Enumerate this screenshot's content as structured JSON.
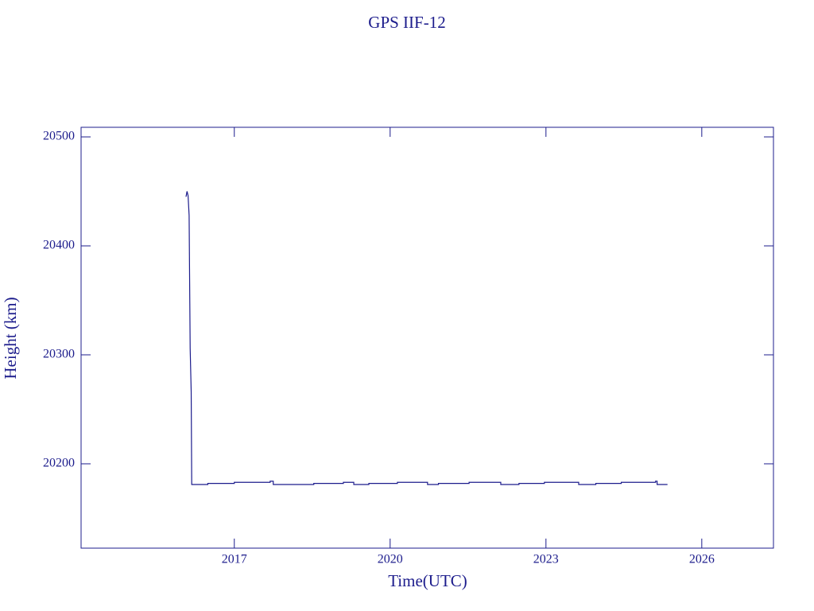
{
  "chart_data": {
    "type": "line",
    "title": "GPS IIF-12",
    "x_label": "Time(UTC)",
    "y_label": "Height (km)",
    "x": [
      2016.07,
      2016.09,
      2016.11,
      2016.13,
      2016.15,
      2016.17,
      2016.18,
      2016.49,
      2016.49,
      2017.0,
      2017.0,
      2017.69,
      2017.69,
      2017.75,
      2017.75,
      2018.53,
      2018.53,
      2019.1,
      2019.1,
      2019.3,
      2019.3,
      2019.59,
      2019.59,
      2020.14,
      2020.14,
      2020.72,
      2020.72,
      2020.93,
      2020.93,
      2021.52,
      2021.52,
      2022.13,
      2022.13,
      2022.48,
      2022.48,
      2022.97,
      2022.97,
      2023.63,
      2023.63,
      2023.96,
      2023.96,
      2024.45,
      2024.45,
      2025.11,
      2025.11,
      2025.14,
      2025.14,
      2025.34
    ],
    "values": [
      20445,
      20450,
      20446,
      20428,
      20306,
      20266,
      20181,
      20181,
      20182,
      20182,
      20183,
      20183,
      20184,
      20184,
      20181,
      20181,
      20182,
      20182,
      20183,
      20183,
      20181,
      20181,
      20182,
      20182,
      20183,
      20183,
      20181,
      20181,
      20182,
      20182,
      20183,
      20183,
      20181,
      20181,
      20182,
      20182,
      20183,
      20183,
      20181,
      20181,
      20182,
      20182,
      20183,
      20183,
      20184,
      20184,
      20181,
      20181
    ],
    "color": "#1c1c8c",
    "xlim": [
      2014.05,
      2027.38
    ],
    "xticks": [
      2017,
      2020,
      2023,
      2026
    ],
    "ylim": [
      20122.6,
      20508.8
    ],
    "yticks": [
      20200,
      20300,
      20400,
      20500
    ]
  }
}
